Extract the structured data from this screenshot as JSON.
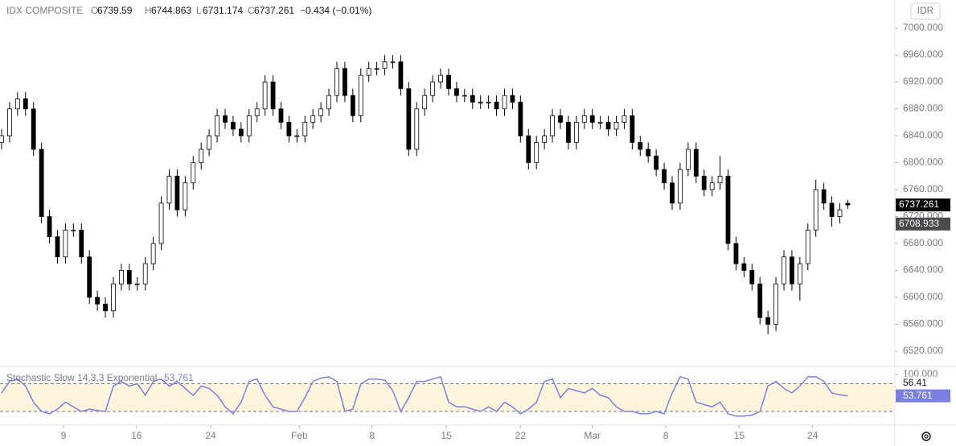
{
  "chart_data": {
    "type": "candlestick",
    "title": "IDX COMPOSITE",
    "ohlc_letters": [
      "O",
      "H",
      "L",
      "C"
    ],
    "change_label": "−0.434 (−0.01%)",
    "currency": "IDR",
    "up_color": "#ffffff",
    "down_color": "#000000",
    "wick_color": "#000000",
    "open": [
      6830,
      6840,
      6880,
      6895,
      6880,
      6820,
      6720,
      6690,
      6660,
      6700,
      6700,
      6660,
      6600,
      6590,
      6580,
      6620,
      6640,
      6620,
      6620,
      6650,
      6680,
      6740,
      6780,
      6730,
      6770,
      6800,
      6820,
      6840,
      6870,
      6860,
      6850,
      6840,
      6870,
      6880,
      6920,
      6880,
      6860,
      6840,
      6840,
      6860,
      6870,
      6880,
      6900,
      6940,
      6900,
      6870,
      6930,
      6940,
      6940,
      6950,
      6950,
      6910,
      6820,
      6880,
      6900,
      6920,
      6930,
      6910,
      6900,
      6900,
      6890,
      6890,
      6890,
      6880,
      6900,
      6890,
      6840,
      6800,
      6830,
      6840,
      6870,
      6860,
      6830,
      6860,
      6870,
      6860,
      6860,
      6850,
      6860,
      6870,
      6830,
      6820,
      6810,
      6790,
      6770,
      6740,
      6790,
      6820,
      6780,
      6760,
      6770,
      6780,
      6680,
      6650,
      6640,
      6620,
      6570,
      6560,
      6620,
      6660,
      6620,
      6650,
      6700,
      6760,
      6740,
      6720,
      6739.59
    ],
    "high": [
      6850,
      6890,
      6905,
      6905,
      6890,
      6830,
      6730,
      6700,
      6710,
      6710,
      6710,
      6670,
      6610,
      6600,
      6630,
      6650,
      6650,
      6630,
      6660,
      6690,
      6750,
      6790,
      6790,
      6780,
      6810,
      6830,
      6850,
      6880,
      6880,
      6870,
      6860,
      6880,
      6890,
      6930,
      6930,
      6890,
      6870,
      6850,
      6870,
      6880,
      6890,
      6910,
      6950,
      6950,
      6910,
      6940,
      6950,
      6950,
      6960,
      6960,
      6960,
      6920,
      6890,
      6910,
      6930,
      6940,
      6940,
      6920,
      6910,
      6910,
      6900,
      6900,
      6900,
      6910,
      6910,
      6900,
      6850,
      6840,
      6850,
      6880,
      6880,
      6870,
      6870,
      6880,
      6880,
      6870,
      6870,
      6870,
      6880,
      6880,
      6840,
      6830,
      6820,
      6800,
      6780,
      6800,
      6830,
      6830,
      6790,
      6780,
      6810,
      6790,
      6690,
      6660,
      6650,
      6630,
      6580,
      6630,
      6670,
      6670,
      6660,
      6710,
      6775,
      6770,
      6750,
      6740,
      6744.863
    ],
    "low": [
      6820,
      6830,
      6870,
      6870,
      6810,
      6710,
      6680,
      6650,
      6650,
      6690,
      6650,
      6590,
      6580,
      6570,
      6570,
      6610,
      6610,
      6610,
      6610,
      6640,
      6670,
      6730,
      6720,
      6720,
      6760,
      6790,
      6810,
      6830,
      6850,
      6840,
      6830,
      6830,
      6860,
      6870,
      6870,
      6850,
      6830,
      6830,
      6830,
      6850,
      6860,
      6870,
      6890,
      6890,
      6860,
      6860,
      6920,
      6930,
      6930,
      6940,
      6900,
      6810,
      6810,
      6870,
      6890,
      6910,
      6900,
      6890,
      6890,
      6880,
      6880,
      6880,
      6870,
      6870,
      6880,
      6830,
      6790,
      6790,
      6820,
      6830,
      6850,
      6820,
      6820,
      6850,
      6850,
      6850,
      6840,
      6840,
      6850,
      6820,
      6810,
      6800,
      6780,
      6760,
      6730,
      6730,
      6780,
      6770,
      6750,
      6750,
      6760,
      6670,
      6640,
      6630,
      6610,
      6560,
      6545,
      6550,
      6610,
      6610,
      6595,
      6640,
      6690,
      6730,
      6705,
      6710,
      6731.174
    ],
    "close": [
      6840,
      6880,
      6895,
      6880,
      6820,
      6720,
      6690,
      6660,
      6700,
      6700,
      6660,
      6600,
      6590,
      6580,
      6620,
      6640,
      6620,
      6620,
      6650,
      6680,
      6740,
      6780,
      6730,
      6770,
      6800,
      6820,
      6840,
      6870,
      6860,
      6850,
      6840,
      6870,
      6880,
      6920,
      6880,
      6860,
      6840,
      6840,
      6860,
      6870,
      6880,
      6900,
      6940,
      6900,
      6870,
      6930,
      6940,
      6940,
      6950,
      6950,
      6910,
      6820,
      6880,
      6900,
      6920,
      6930,
      6910,
      6900,
      6900,
      6890,
      6890,
      6890,
      6880,
      6900,
      6890,
      6840,
      6800,
      6830,
      6840,
      6870,
      6860,
      6830,
      6860,
      6870,
      6860,
      6860,
      6850,
      6860,
      6870,
      6830,
      6820,
      6810,
      6790,
      6770,
      6740,
      6790,
      6820,
      6780,
      6760,
      6770,
      6780,
      6680,
      6650,
      6640,
      6620,
      6570,
      6560,
      6620,
      6660,
      6620,
      6650,
      6700,
      6760,
      6740,
      6720,
      6730,
      6737.261
    ],
    "marker_price": 6708.933,
    "xlim": [
      -0.2,
      111.9
    ],
    "xticks": [
      {
        "value": 7.75,
        "label": "9"
      },
      {
        "value": 16.9,
        "label": "16"
      },
      {
        "value": 26.2,
        "label": "24"
      },
      {
        "value": 37.3,
        "label": "Feb"
      },
      {
        "value": 46.4,
        "label": "8"
      },
      {
        "value": 55.7,
        "label": "15"
      },
      {
        "value": 65,
        "label": "22"
      },
      {
        "value": 74,
        "label": "Mar"
      },
      {
        "value": 83.2,
        "label": "8"
      },
      {
        "value": 92.4,
        "label": "15"
      },
      {
        "value": 101.6,
        "label": "24"
      }
    ],
    "ylim": [
      6498.5,
      7041.8
    ],
    "yticks": [
      {
        "value": 6520,
        "label": "6520.000"
      },
      {
        "value": 6560,
        "label": "6560.000"
      },
      {
        "value": 6600,
        "label": "6600.000"
      },
      {
        "value": 6640,
        "label": "6640.000"
      },
      {
        "value": 6680,
        "label": "6680.000"
      },
      {
        "value": 6720,
        "label": "6720.000"
      },
      {
        "value": 6760,
        "label": "6760.000"
      },
      {
        "value": 6800,
        "label": "6800.000"
      },
      {
        "value": 6840,
        "label": "6840.000"
      },
      {
        "value": 6880,
        "label": "6880.000"
      },
      {
        "value": 6920,
        "label": "6920.000"
      },
      {
        "value": 6960,
        "label": "6960.000"
      },
      {
        "value": 7000,
        "label": "7000.000"
      }
    ],
    "stochastic": {
      "title": "Stochastic Slow 14,3,3 Exponential",
      "color": "#7b7fe0",
      "band_color": "#fff5dc",
      "bands": [
        20,
        80
      ],
      "ylim": [
        -7.8,
        113.9
      ],
      "yticks": [
        {
          "value": 100,
          "label": "100.000"
        }
      ],
      "d_last": 56.41,
      "values": [
        60,
        85,
        90,
        75,
        40,
        20,
        15,
        25,
        40,
        30,
        20,
        25,
        22,
        20,
        75,
        85,
        75,
        80,
        55,
        85,
        90,
        75,
        85,
        70,
        55,
        75,
        70,
        55,
        30,
        15,
        40,
        85,
        90,
        55,
        30,
        25,
        20,
        20,
        50,
        85,
        92,
        95,
        85,
        20,
        25,
        80,
        90,
        90,
        88,
        65,
        20,
        50,
        85,
        85,
        90,
        95,
        40,
        30,
        30,
        25,
        20,
        30,
        20,
        40,
        30,
        15,
        25,
        40,
        85,
        90,
        50,
        70,
        65,
        60,
        70,
        55,
        50,
        30,
        20,
        20,
        15,
        15,
        20,
        15,
        60,
        95,
        90,
        40,
        35,
        30,
        40,
        15,
        10,
        10,
        12,
        20,
        75,
        85,
        70,
        60,
        75,
        95,
        95,
        85,
        60,
        56,
        53.761
      ]
    }
  }
}
